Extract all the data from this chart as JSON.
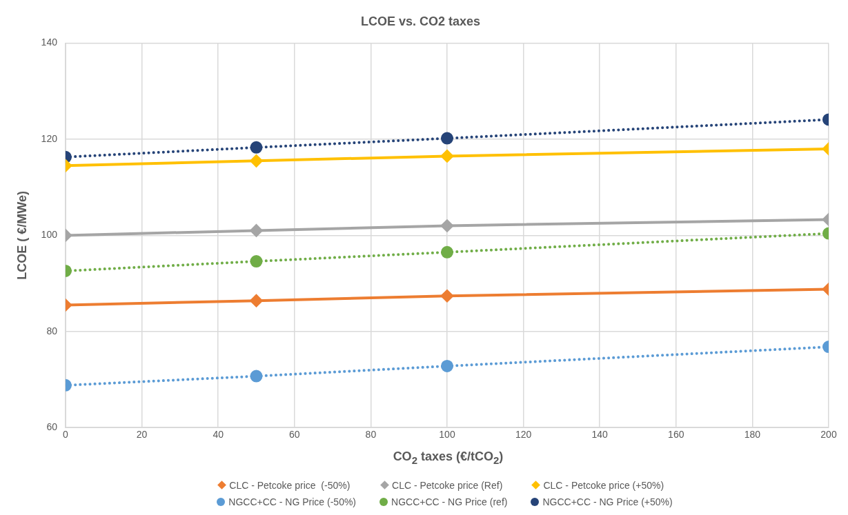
{
  "chart_data": {
    "type": "line",
    "title": "LCOE vs. CO2 taxes",
    "xlabel": "CO$_{2}$ taxes (€/tCO$_{2}$)",
    "ylabel": "LCOE ( €/MWe)",
    "x": [
      0,
      50,
      100,
      200
    ],
    "xlim": [
      0,
      200
    ],
    "xticks": [
      0,
      20,
      40,
      60,
      80,
      100,
      120,
      140,
      160,
      180,
      200
    ],
    "ylim": [
      60,
      140
    ],
    "yticks": [
      60,
      80,
      100,
      120,
      140
    ],
    "grid": true,
    "legend": "bottom",
    "series": [
      {
        "name": "CLC - Petcoke price  (-50%)",
        "color": "#ed7d31",
        "marker": "diamond",
        "line_style": "solid",
        "values": [
          85.5,
          86.4,
          87.4,
          88.8
        ]
      },
      {
        "name": "CLC - Petcoke price (Ref)",
        "color": "#a5a5a5",
        "marker": "diamond",
        "line_style": "solid",
        "values": [
          100.0,
          101.0,
          102.0,
          103.3
        ]
      },
      {
        "name": "CLC - Petcoke price (+50%)",
        "color": "#ffc000",
        "marker": "diamond",
        "line_style": "solid",
        "values": [
          114.5,
          115.5,
          116.5,
          118.0
        ]
      },
      {
        "name": "NGCC+CC - NG Price (-50%)",
        "color": "#5b9bd5",
        "marker": "circle",
        "line_style": "dotted",
        "values": [
          68.8,
          70.7,
          72.8,
          76.8
        ]
      },
      {
        "name": "NGCC+CC - NG Price (ref)",
        "color": "#70ad47",
        "marker": "circle",
        "line_style": "dotted",
        "values": [
          92.6,
          94.6,
          96.5,
          100.4
        ]
      },
      {
        "name": "NGCC+CC - NG Price (+50%)",
        "color": "#264478",
        "marker": "circle",
        "line_style": "dotted",
        "values": [
          116.3,
          118.3,
          120.2,
          124.1
        ]
      }
    ]
  }
}
